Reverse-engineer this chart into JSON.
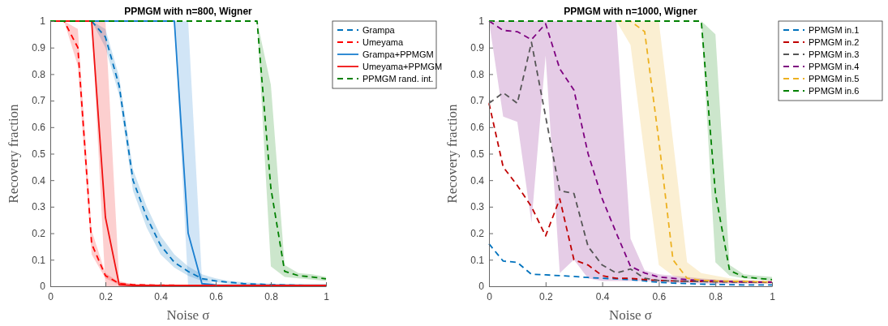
{
  "chart_data": [
    {
      "type": "line",
      "title": "PPMGM with n=800, Wigner",
      "xlabel": "Noise σ",
      "ylabel": "Recovery fraction",
      "x": [
        0,
        0.05,
        0.1,
        0.15,
        0.2,
        0.25,
        0.3,
        0.35,
        0.4,
        0.45,
        0.5,
        0.55,
        0.6,
        0.65,
        0.7,
        0.75,
        0.8,
        0.85,
        0.9,
        0.95,
        1
      ],
      "xlim": [
        0,
        1
      ],
      "ylim": [
        0,
        1
      ],
      "xticks": [
        0,
        0.2,
        0.4,
        0.6,
        0.8,
        1
      ],
      "yticks": [
        0,
        0.1,
        0.2,
        0.3,
        0.4,
        0.5,
        0.6,
        0.7,
        0.8,
        0.9,
        1
      ],
      "grid": false,
      "legend": "right",
      "series": [
        {
          "name": "Grampa",
          "color": "#0072bd",
          "line_style": "dashed",
          "values": [
            null,
            null,
            null,
            1,
            0.94,
            0.755,
            0.4,
            0.26,
            0.155,
            0.09,
            0.056,
            0.029,
            0.02,
            0.015,
            0.01,
            0.008,
            0.006,
            0.005,
            0.004,
            0.003,
            0.003
          ],
          "lower": [
            null,
            null,
            null,
            1,
            0.9,
            0.72,
            0.36,
            0.22,
            0.12,
            0.07,
            0.04,
            0.02,
            0.015,
            0.01,
            0.007,
            0.005,
            0.004,
            0.003,
            0.002,
            0.002,
            0.002
          ],
          "upper": [
            null,
            null,
            null,
            1,
            0.97,
            0.79,
            0.44,
            0.3,
            0.19,
            0.12,
            0.075,
            0.045,
            0.03,
            0.02,
            0.015,
            0.012,
            0.01,
            0.008,
            0.006,
            0.005,
            0.005
          ]
        },
        {
          "name": "Umeyama",
          "color": "#ff0000",
          "line_style": "dashed",
          "values": [
            1,
            1,
            0.9,
            0.16,
            0.04,
            0.01,
            0.006,
            0.005,
            0.004,
            0.004,
            0.003,
            0.003,
            0.003,
            0.003,
            0.003,
            0.003,
            0.003,
            0.003,
            0.003,
            0.003,
            0.003
          ],
          "lower": [
            null,
            1,
            0.83,
            0.12,
            0.03,
            0.005,
            0.003,
            0.003,
            0.002,
            0.002,
            0.002,
            0.002,
            0.002,
            0.002,
            0.002,
            0.002,
            0.002,
            0.002,
            0.002,
            0.002,
            0.002
          ],
          "upper": [
            null,
            1,
            0.97,
            0.21,
            0.05,
            0.015,
            0.01,
            0.008,
            0.007,
            0.006,
            0.005,
            0.005,
            0.005,
            0.005,
            0.005,
            0.005,
            0.005,
            0.005,
            0.005,
            0.005,
            0.005
          ]
        },
        {
          "name": "Grampa+PPMGM",
          "color": "#1a7fd0",
          "line_style": "solid",
          "values": [
            null,
            null,
            null,
            1,
            1,
            1,
            1,
            1,
            1,
            1,
            0.2,
            0.01,
            0.005,
            0.004,
            0.004,
            0.004,
            0.004,
            0.004,
            0.004,
            0.004,
            0.004
          ],
          "lower": [
            null,
            null,
            null,
            null,
            null,
            null,
            null,
            null,
            null,
            1,
            0,
            0.002,
            0.003,
            null,
            null,
            null,
            null,
            null,
            null,
            null,
            null
          ],
          "upper": [
            null,
            null,
            null,
            null,
            null,
            null,
            null,
            null,
            null,
            1,
            1,
            0.03,
            0.008,
            null,
            null,
            null,
            null,
            null,
            null,
            null,
            null
          ]
        },
        {
          "name": "Umeyama+PPMGM",
          "color": "#f01010",
          "line_style": "solid",
          "values": [
            1,
            1,
            1,
            1,
            0.26,
            0.005,
            0.003,
            0.003,
            0.003,
            0.003,
            0.003,
            0.003,
            0.003,
            0.003,
            0.003,
            0.003,
            0.003,
            0.003,
            0.003,
            0.003,
            0.003
          ],
          "lower": [
            null,
            null,
            null,
            1,
            0,
            0,
            0.002,
            null,
            null,
            null,
            null,
            null,
            null,
            null,
            null,
            null,
            null,
            null,
            null,
            null,
            null
          ],
          "upper": [
            null,
            null,
            null,
            1,
            1,
            0.02,
            0.005,
            null,
            null,
            null,
            null,
            null,
            null,
            null,
            null,
            null,
            null,
            null,
            null,
            null,
            null
          ]
        },
        {
          "name": "PPMGM rand. int.",
          "color": "#008000",
          "line_style": "dashed",
          "values": [
            1,
            1,
            1,
            1,
            1,
            1,
            1,
            1,
            1,
            1,
            1,
            1,
            1,
            1,
            1,
            1,
            0.37,
            0.056,
            0.04,
            0.035,
            0.028
          ],
          "lower": [
            null,
            null,
            null,
            null,
            null,
            null,
            null,
            null,
            null,
            null,
            null,
            null,
            null,
            null,
            null,
            1,
            0.075,
            0.035,
            0.03,
            0.025,
            0.02
          ],
          "upper": [
            null,
            null,
            null,
            null,
            null,
            null,
            null,
            null,
            null,
            null,
            null,
            null,
            null,
            null,
            null,
            1,
            0.76,
            0.08,
            0.05,
            0.045,
            0.035
          ]
        }
      ]
    },
    {
      "type": "line",
      "title": "PPMGM with n=1000, Wigner",
      "xlabel": "Noise σ",
      "ylabel": "Recovery fraction",
      "x": [
        0,
        0.05,
        0.1,
        0.15,
        0.2,
        0.25,
        0.3,
        0.35,
        0.4,
        0.45,
        0.5,
        0.55,
        0.6,
        0.65,
        0.7,
        0.75,
        0.8,
        0.85,
        0.9,
        0.95,
        1
      ],
      "xlim": [
        0,
        1
      ],
      "ylim": [
        0,
        1
      ],
      "xticks": [
        0,
        0.2,
        0.4,
        0.6,
        0.8,
        1
      ],
      "yticks": [
        0,
        0.1,
        0.2,
        0.3,
        0.4,
        0.5,
        0.6,
        0.7,
        0.8,
        0.9,
        1
      ],
      "grid": false,
      "legend": "right",
      "series": [
        {
          "name": "PPMGM in.1",
          "color": "#0072bd",
          "line_style": "dashed",
          "values": [
            0.16,
            0.095,
            0.09,
            0.045,
            0.043,
            0.04,
            0.037,
            0.033,
            0.03,
            0.028,
            0.025,
            0.02,
            0.015,
            0.012,
            0.01,
            0.008,
            0.007,
            0.006,
            0.005,
            0.005,
            0.005
          ]
        },
        {
          "name": "PPMGM in.2",
          "color": "#c00000",
          "line_style": "dashed",
          "values": [
            0.69,
            0.45,
            0.38,
            0.3,
            0.19,
            0.33,
            0.1,
            0.08,
            0.04,
            0.03,
            0.03,
            0.025,
            0.022,
            0.02,
            0.019,
            0.018,
            0.017,
            0.017,
            0.016,
            0.016,
            0.016
          ]
        },
        {
          "name": "PPMGM in.3",
          "color": "#555555",
          "line_style": "dashed",
          "values": [
            0.69,
            0.73,
            0.69,
            0.92,
            0.64,
            0.36,
            0.35,
            0.15,
            0.08,
            0.05,
            0.065,
            0.03,
            0.022,
            0.02,
            0.019,
            0.018,
            0.017,
            0.016,
            0.016,
            0.015,
            0.015
          ]
        },
        {
          "name": "PPMGM in.4",
          "color": "#7e0080",
          "line_style": "dashed",
          "values": [
            1,
            0.965,
            0.96,
            0.93,
            0.99,
            0.82,
            0.74,
            0.5,
            0.33,
            0.2,
            0.075,
            0.05,
            0.035,
            0.03,
            0.025,
            0.022,
            0.02,
            0.018,
            0.017,
            0.016,
            0.015
          ],
          "lower": [
            1,
            0.64,
            0.62,
            0.24,
            0.87,
            0.05,
            0.1,
            0.03,
            0.02,
            0.02,
            0.02,
            0.02,
            0.015,
            0.013,
            0.012,
            0.011,
            0.01,
            0.01,
            0.01,
            0.01,
            0.01
          ],
          "upper": [
            1,
            1,
            1,
            1,
            1,
            1,
            1,
            1,
            1,
            1,
            0.18,
            0.06,
            0.045,
            0.04,
            0.035,
            0.03,
            0.025,
            0.022,
            0.02,
            0.018,
            0.016
          ]
        },
        {
          "name": "PPMGM in.5",
          "color": "#edb120",
          "line_style": "dashed",
          "values": [
            null,
            null,
            null,
            null,
            null,
            null,
            null,
            null,
            null,
            1,
            1,
            0.96,
            0.55,
            0.1,
            0.03,
            0.022,
            0.02,
            0.019,
            0.018,
            0.017,
            0.016
          ],
          "lower": [
            null,
            null,
            null,
            null,
            null,
            null,
            null,
            null,
            null,
            1,
            0.91,
            0.49,
            0.08,
            0.04,
            0.025,
            0.018,
            0.015,
            0.013,
            0.012,
            0.011,
            0.01
          ],
          "upper": [
            null,
            null,
            null,
            null,
            null,
            null,
            null,
            null,
            null,
            1,
            1,
            1,
            1,
            0.55,
            0.09,
            0.05,
            0.04,
            0.03,
            0.025,
            0.02,
            0.018
          ]
        },
        {
          "name": "PPMGM in.6",
          "color": "#008000",
          "line_style": "dashed",
          "values": [
            1,
            1,
            1,
            1,
            1,
            1,
            1,
            1,
            1,
            1,
            1,
            1,
            1,
            1,
            1,
            1,
            0.35,
            0.06,
            0.035,
            0.03,
            0.025
          ],
          "lower": [
            null,
            null,
            null,
            null,
            null,
            null,
            null,
            null,
            null,
            null,
            null,
            null,
            null,
            null,
            null,
            1,
            0.09,
            0.04,
            0.03,
            0.025,
            0.02
          ],
          "upper": [
            null,
            null,
            null,
            null,
            null,
            null,
            null,
            null,
            null,
            null,
            null,
            null,
            null,
            null,
            null,
            1,
            0.95,
            0.08,
            0.045,
            0.04,
            0.035
          ]
        }
      ]
    }
  ]
}
